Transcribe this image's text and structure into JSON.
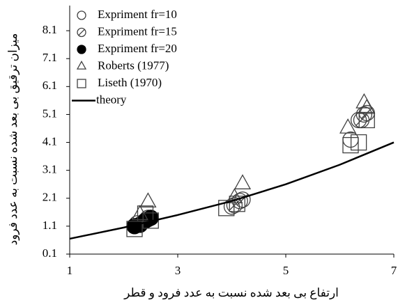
{
  "chart_data": {
    "type": "scatter",
    "xlabel": "ارتفاع بی بعد شده نسبت به عدد فرود و قطر",
    "ylabel": "میزان ترقیق بی بعد شده نسبت به عدد فرود",
    "xlim": [
      1,
      7
    ],
    "xticks": [
      1,
      3,
      5,
      7
    ],
    "ylim": [
      0.1,
      9.0
    ],
    "yticks": [
      0.1,
      1.1,
      2.1,
      3.1,
      4.1,
      5.1,
      6.1,
      7.1,
      8.1
    ],
    "legend": "upper left",
    "series": [
      {
        "name": "Expriment fr=10",
        "marker": "circle",
        "color": "#404040",
        "x": [
          2.25,
          2.45,
          4.0,
          4.15,
          6.2,
          6.35,
          6.45
        ],
        "values": [
          1.2,
          1.4,
          1.8,
          2.0,
          4.2,
          4.9,
          5.1
        ]
      },
      {
        "name": "Expriment fr=15",
        "marker": "circle-hatched",
        "color": "#404040",
        "x": [
          2.3,
          2.45,
          4.05,
          4.2,
          6.4,
          6.5
        ],
        "values": [
          1.15,
          1.35,
          1.85,
          2.05,
          4.9,
          5.15
        ]
      },
      {
        "name": "Expriment fr=20",
        "marker": "circle-filled",
        "color": "#000000",
        "x": [
          2.2,
          2.3,
          2.4,
          2.5
        ],
        "values": [
          1.1,
          1.15,
          1.3,
          1.4
        ]
      },
      {
        "name": "Roberts (1977)",
        "marker": "triangle",
        "color": "#404040",
        "x": [
          2.3,
          2.45,
          4.05,
          4.2,
          6.15,
          6.45,
          6.5
        ],
        "values": [
          1.5,
          1.95,
          2.1,
          2.6,
          4.6,
          5.5,
          5.3
        ]
      },
      {
        "name": "Liseth (1970)",
        "marker": "square",
        "color": "#404040",
        "x": [
          2.2,
          2.4,
          2.5,
          3.9,
          4.1,
          6.2,
          6.35,
          6.5
        ],
        "values": [
          1.0,
          1.55,
          1.3,
          1.75,
          1.9,
          4.0,
          4.1,
          4.9
        ]
      },
      {
        "name": "theory",
        "marker": "line",
        "color": "#000000",
        "x": [
          1,
          2,
          3,
          4,
          5,
          6,
          7
        ],
        "values": [
          0.65,
          1.05,
          1.5,
          2.0,
          2.6,
          3.3,
          4.1
        ]
      }
    ]
  }
}
